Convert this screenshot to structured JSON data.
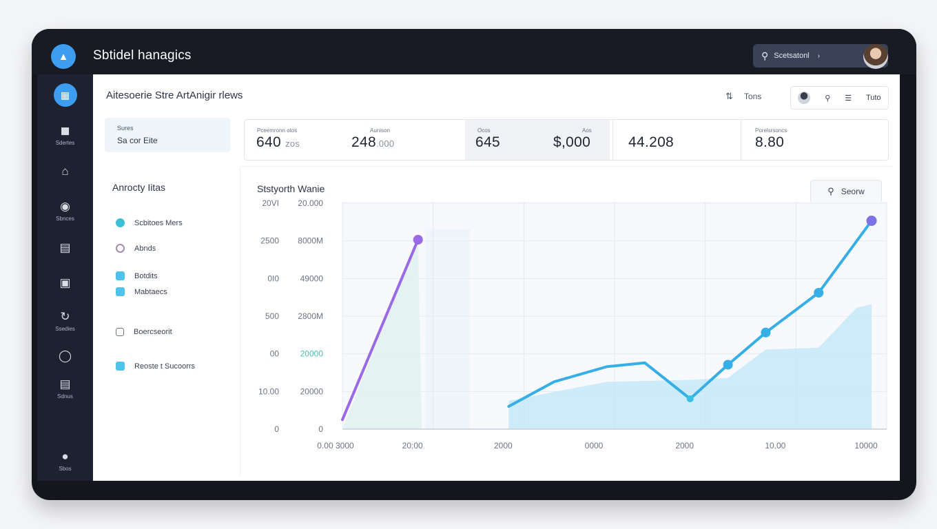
{
  "app": {
    "title": "Sbtidel hanagics"
  },
  "header": {
    "search_value": "Scetsatonl",
    "caret": "›"
  },
  "sidebar": {
    "items": [
      {
        "label": "Sdertes",
        "icon": "building-icon"
      },
      {
        "label": "",
        "icon": "home-icon"
      },
      {
        "label": "Sbnces",
        "icon": "pin-icon"
      },
      {
        "label": "",
        "icon": "card-icon"
      },
      {
        "label": "",
        "icon": "monitor-icon"
      },
      {
        "label": "Ssedies",
        "icon": "refresh-icon"
      },
      {
        "label": "",
        "icon": "user-icon"
      },
      {
        "label": "Sdnus",
        "icon": "list-icon"
      },
      {
        "label": "Sbos",
        "icon": "chat-icon"
      }
    ]
  },
  "page": {
    "title": "Aitesoerie Stre ArtAnigir rlews"
  },
  "toolbar": {
    "label": "Tons",
    "action_label": "Tuto"
  },
  "left_card": {
    "caption": "Sures",
    "value": "Sa cor Eite"
  },
  "activity": {
    "title": "Anrocty Iitas",
    "items": [
      {
        "label": "Scbitoes Mers",
        "color": "#3bbfd6"
      },
      {
        "label": "Abnds",
        "color": "#a48bb0"
      },
      {
        "label": "Botdits",
        "color": "#4ec3ee"
      },
      {
        "label": "Mabtaecs",
        "color": "#4ec3ee"
      },
      {
        "label": "Boercseorit",
        "color": "#6b7383"
      },
      {
        "label": "Reoste t Sucoorrs",
        "color": "#4ec3ee"
      }
    ]
  },
  "stats": [
    {
      "caption": "Pceemronn otos",
      "value": "640",
      "sub": "zos"
    },
    {
      "caption": "Aunison",
      "value": "248",
      "sub": ".000"
    },
    {
      "caption": "Ocos",
      "value": "645",
      "sub": ""
    },
    {
      "caption": "Aos",
      "value": "$,000",
      "sub": ""
    },
    {
      "caption": "",
      "value": "44.208",
      "sub": ""
    },
    {
      "caption": "Porelsrsoncs",
      "value": "8.80",
      "sub": ""
    }
  ],
  "chart": {
    "title": "Ststyorth Wanie",
    "button_label": "Seorw"
  },
  "chart_data": {
    "type": "line",
    "y_ticks_left": [
      "20VI",
      "2500",
      "0I0",
      "500",
      "00",
      "10.00",
      "0"
    ],
    "y_ticks_right": [
      "20.000",
      "8000M",
      "49000",
      "2800M",
      "20000",
      "20000",
      "0"
    ],
    "x_ticks": [
      "0.00 3000",
      "20:00",
      "2000",
      "0000",
      "2000",
      "10.00",
      "10000"
    ],
    "series": [
      {
        "color": "#9a6ae6",
        "x": [
          0,
          1
        ],
        "y": [
          0.5,
          10.0
        ]
      },
      {
        "color": "#36aee6",
        "x": [
          2.2,
          2.8,
          3.5,
          4.0,
          4.6,
          5.1,
          5.6,
          6.3,
          7.0
        ],
        "y": [
          1.2,
          2.5,
          3.3,
          3.5,
          1.6,
          3.4,
          5.1,
          7.2,
          11.0
        ]
      }
    ],
    "area": {
      "color": "#bfe6f8",
      "x": [
        2.2,
        3.5,
        4.6,
        5.1,
        5.6,
        6.3,
        6.8,
        7.0
      ],
      "y": [
        1.5,
        2.5,
        2.6,
        2.7,
        4.2,
        4.3,
        6.4,
        6.6
      ]
    },
    "ylim": [
      0,
      12
    ]
  }
}
